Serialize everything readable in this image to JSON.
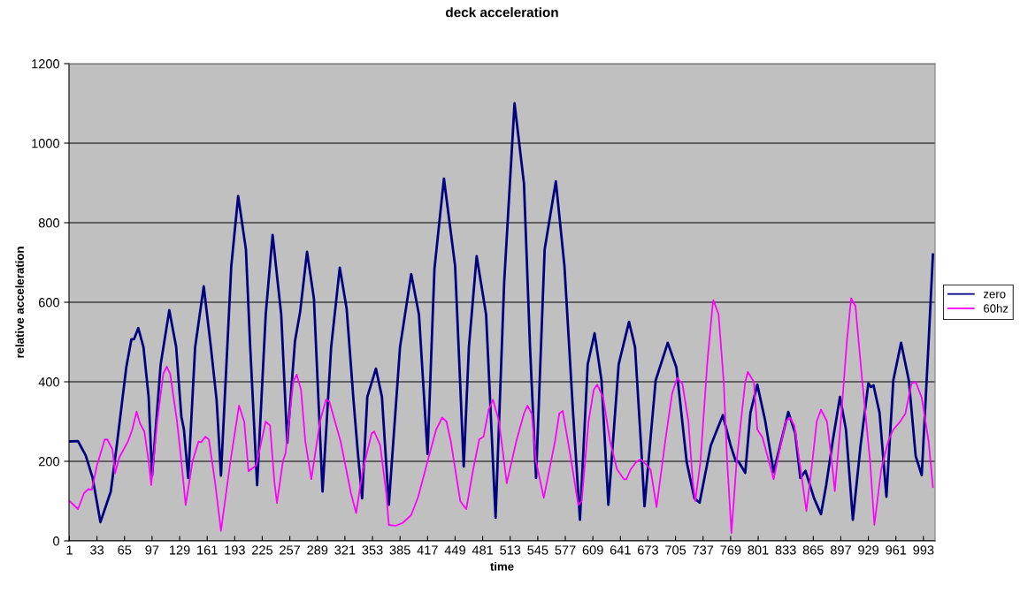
{
  "chart_data": {
    "type": "line",
    "title": "deck acceleration",
    "xlabel": "time",
    "ylabel": "relative acceleration",
    "xlim": [
      0.5,
      1006.5
    ],
    "xticks": [
      1,
      33,
      65,
      97,
      129,
      161,
      193,
      225,
      257,
      289,
      321,
      353,
      385,
      417,
      449,
      481,
      513,
      545,
      577,
      609,
      641,
      673,
      705,
      737,
      769,
      801,
      833,
      865,
      897,
      929,
      961,
      993
    ],
    "ylim": [
      0,
      1200
    ],
    "yticks": [
      0,
      200,
      400,
      600,
      800,
      1000,
      1200
    ],
    "grid": "y",
    "legend": "right",
    "marker": "none",
    "line_style": "solid",
    "series": [
      {
        "name": "zero",
        "color": "#000080",
        "x": [
          1,
          11,
          20,
          28,
          37,
          49,
          56,
          67,
          73,
          76,
          81,
          87,
          93,
          97,
          107,
          117,
          125,
          131,
          134,
          139,
          147,
          157,
          165,
          172,
          177,
          189,
          197,
          206,
          211,
          219,
          229,
          237,
          247,
          254,
          263,
          269,
          277,
          285,
          295,
          305,
          315,
          323,
          331,
          336,
          341,
          347,
          357,
          364,
          372,
          385,
          398,
          407,
          417,
          425,
          436,
          449,
          459,
          465,
          474,
          485,
          496,
          506,
          518,
          529,
          536,
          543,
          553,
          566,
          576,
          586,
          594,
          603,
          611,
          619,
          627,
          639,
          651,
          658,
          665,
          669,
          682,
          696,
          706,
          718,
          727,
          733,
          746,
          760,
          769,
          775,
          778,
          786,
          792,
          800,
          809,
          819,
          836,
          844,
          850,
          856,
          866,
          874,
          880,
          888,
          896,
          903,
          911,
          920,
          929,
          932,
          935,
          942,
          950,
          958,
          967,
          976,
          984,
          991,
          999,
          1004
        ],
        "values": [
          250,
          251,
          214,
          158,
          47,
          124,
          240,
          436,
          507,
          507,
          535,
          487,
          362,
          164,
          444,
          580,
          487,
          313,
          280,
          158,
          487,
          640,
          493,
          353,
          164,
          691,
          867,
          733,
          487,
          140,
          569,
          769,
          569,
          247,
          502,
          576,
          727,
          609,
          124,
          487,
          687,
          584,
          353,
          222,
          107,
          362,
          433,
          362,
          91,
          487,
          671,
          569,
          218,
          684,
          911,
          691,
          187,
          487,
          716,
          569,
          58,
          651,
          1100,
          898,
          487,
          158,
          733,
          904,
          691,
          322,
          53,
          444,
          522,
          404,
          91,
          444,
          551,
          487,
          240,
          87,
          404,
          498,
          436,
          198,
          107,
          96,
          240,
          316,
          240,
          200,
          200,
          171,
          322,
          393,
          304,
          173,
          324,
          271,
          158,
          176,
          107,
          67,
          140,
          256,
          362,
          280,
          53,
          240,
          396,
          387,
          391,
          322,
          111,
          404,
          498,
          404,
          213,
          165,
          500,
          720
        ]
      },
      {
        "name": "60hz",
        "color": "#ff00ff",
        "x": [
          1,
          11,
          18,
          23,
          27,
          33,
          42,
          45,
          51,
          54,
          59,
          69,
          74,
          79,
          83,
          88,
          93,
          96,
          103,
          110,
          114,
          118,
          126,
          131,
          136,
          144,
          151,
          154,
          159,
          163,
          170,
          177,
          188,
          198,
          204,
          209,
          215,
          218,
          229,
          234,
          239,
          242,
          249,
          252,
          261,
          265,
          270,
          275,
          282,
          292,
          299,
          303,
          316,
          328,
          334,
          342,
          352,
          355,
          362,
          369,
          372,
          380,
          388,
          398,
          406,
          417,
          427,
          434,
          439,
          444,
          455,
          460,
          462,
          470,
          477,
          482,
          488,
          493,
          500,
          509,
          520,
          529,
          533,
          538,
          543,
          552,
          565,
          570,
          574,
          584,
          592,
          596,
          604,
          610,
          614,
          621,
          629,
          637,
          645,
          648,
          653,
          660,
          665,
          676,
          683,
          693,
          701,
          707,
          713,
          720,
          725,
          728,
          734,
          742,
          748,
          749,
          755,
          761,
          765,
          770,
          776,
          786,
          789,
          796,
          800,
          806,
          819,
          827,
          833,
          838,
          843,
          851,
          857,
          864,
          869,
          874,
          881,
          888,
          890,
          897,
          904,
          909,
          914,
          922,
          931,
          936,
          944,
          952,
          958,
          966,
          972,
          979,
          984,
          991,
          999,
          1004
        ],
        "values": [
          100,
          80,
          120,
          130,
          128,
          190,
          255,
          255,
          230,
          170,
          210,
          250,
          280,
          325,
          295,
          275,
          200,
          140,
          300,
          420,
          438,
          420,
          300,
          200,
          90,
          200,
          250,
          248,
          262,
          255,
          150,
          25,
          200,
          340,
          300,
          175,
          185,
          190,
          300,
          290,
          150,
          95,
          200,
          220,
          400,
          418,
          380,
          250,
          155,
          300,
          355,
          350,
          250,
          120,
          70,
          180,
          270,
          275,
          240,
          120,
          40,
          38,
          45,
          65,
          110,
          200,
          280,
          310,
          300,
          250,
          100,
          85,
          80,
          180,
          255,
          262,
          330,
          355,
          300,
          145,
          250,
          320,
          340,
          320,
          200,
          108,
          250,
          320,
          327,
          200,
          90,
          100,
          300,
          380,
          393,
          360,
          250,
          180,
          155,
          155,
          180,
          200,
          205,
          180,
          85,
          250,
          370,
          410,
          395,
          300,
          150,
          100,
          200,
          450,
          590,
          605,
          570,
          400,
          200,
          20,
          200,
          400,
          425,
          400,
          280,
          260,
          155,
          240,
          300,
          310,
          290,
          170,
          75,
          200,
          300,
          330,
          300,
          170,
          125,
          300,
          500,
          610,
          590,
          400,
          200,
          40,
          180,
          250,
          280,
          300,
          320,
          395,
          400,
          360,
          250,
          135
        ]
      }
    ]
  }
}
